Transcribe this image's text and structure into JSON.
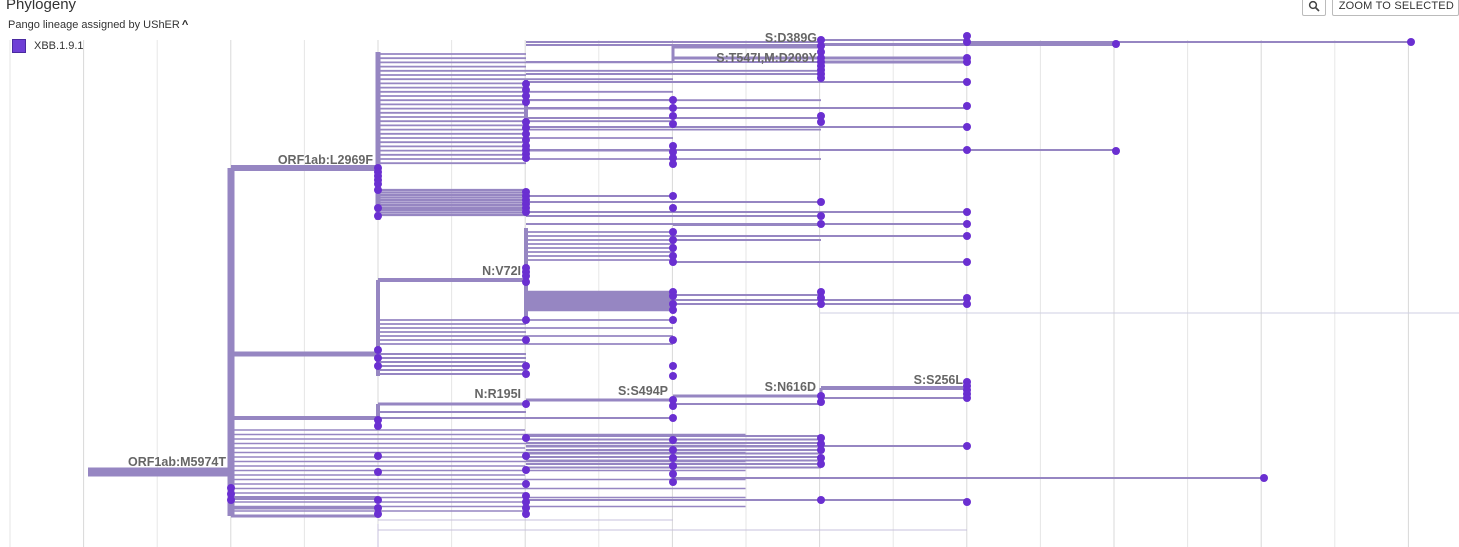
{
  "header": {
    "title": "Phylogeny",
    "color_by_label": "Pango lineage assigned by UShER",
    "zoom_button_label": "ZOOM TO SELECTED"
  },
  "legend": [
    {
      "label": "XBB.1.9.1",
      "color": "#6f3fd6"
    }
  ],
  "colors": {
    "branch": "#9686c2",
    "branch_light": "#c7c0dc",
    "node": "#6a2fd1",
    "grid": "#e6e6e6"
  },
  "mutations": [
    {
      "id": "m1",
      "label": "S:D389G"
    },
    {
      "id": "m2",
      "label": "S:T547I,M:D209Y"
    },
    {
      "id": "m3",
      "label": "ORF1ab:L2969F"
    },
    {
      "id": "m4",
      "label": "N:V72I"
    },
    {
      "id": "m5",
      "label": "N:R195I"
    },
    {
      "id": "m6",
      "label": "S:S494P"
    },
    {
      "id": "m7",
      "label": "S:N616D"
    },
    {
      "id": "m8",
      "label": "S:S256L"
    },
    {
      "id": "m9",
      "label": "ORF1ab:M5974T"
    }
  ]
}
